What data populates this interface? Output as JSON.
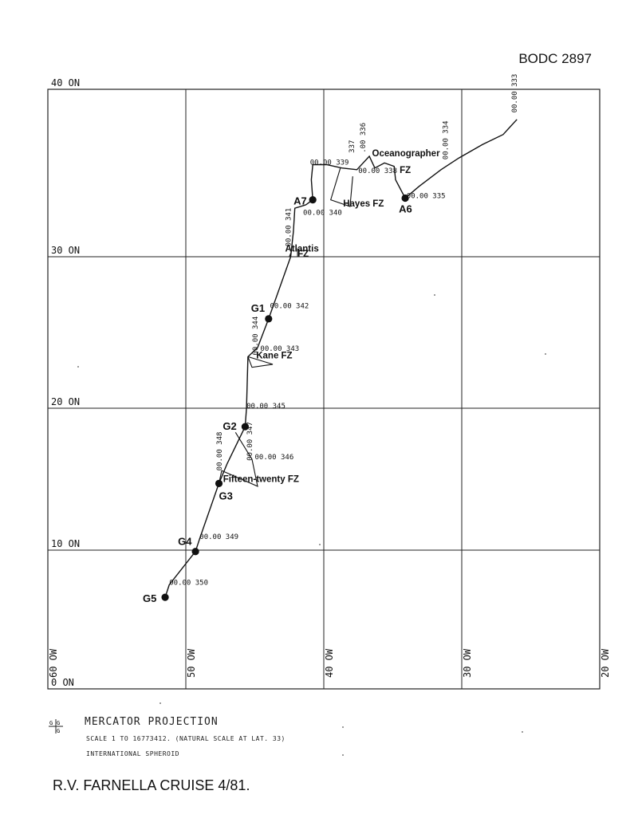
{
  "header": {
    "document_id": "BODC 2897"
  },
  "map": {
    "grid_latitudes": [
      {
        "value": 0,
        "label": "0 ON"
      },
      {
        "value": 10,
        "label": "10 ON"
      },
      {
        "value": 20,
        "label": "20 ON"
      },
      {
        "value": 30,
        "label": "30 ON"
      },
      {
        "value": 40,
        "label": "40 ON"
      }
    ],
    "grid_longitudes": [
      {
        "value": 60,
        "label": "60 OW"
      },
      {
        "value": 50,
        "label": "50 OW"
      },
      {
        "value": 40,
        "label": "40 OW"
      },
      {
        "value": 30,
        "label": "30 OW"
      },
      {
        "value": 20,
        "label": "20 OW"
      }
    ],
    "stations": [
      {
        "name": "G5",
        "lon": 51.5,
        "lat": 6.6
      },
      {
        "name": "G4",
        "lon": 49.3,
        "lat": 9.9
      },
      {
        "name": "G3",
        "lon": 47.6,
        "lat": 14.7
      },
      {
        "name": "G2",
        "lon": 45.7,
        "lat": 18.7
      },
      {
        "name": "G1",
        "lon": 44.0,
        "lat": 25.9
      },
      {
        "name": "A7",
        "lon": 40.8,
        "lat": 33.4
      },
      {
        "name": "A6",
        "lon": 34.1,
        "lat": 33.5
      }
    ],
    "day_marks": [
      {
        "label": "00.00 350",
        "lon": 51.2,
        "lat": 7.5
      },
      {
        "label": "00.00 349",
        "lon": 49.0,
        "lat": 10.8
      },
      {
        "label": "00.00 348",
        "lon": 47.4,
        "lat": 15.6
      },
      {
        "label": "00.00 347",
        "lon": 45.2,
        "lat": 16.3
      },
      {
        "label": "00.00 346",
        "lon": 45.0,
        "lat": 16.4
      },
      {
        "label": "00.00 345",
        "lon": 45.6,
        "lat": 20.0
      },
      {
        "label": "00.00 344",
        "lon": 44.8,
        "lat": 23.5
      },
      {
        "label": "00.00 343",
        "lon": 44.6,
        "lat": 23.8
      },
      {
        "label": "00.00 342",
        "lon": 43.9,
        "lat": 26.6
      },
      {
        "label": "00.00 341",
        "lon": 42.4,
        "lat": 30.6
      },
      {
        "label": "00.00 340",
        "lon": 41.5,
        "lat": 32.5
      },
      {
        "label": "00.00 339",
        "lon": 41.0,
        "lat": 35.5
      },
      {
        "label": "00.00 338",
        "lon": 37.5,
        "lat": 35.0
      },
      {
        "label": "337",
        "lon": 37.8,
        "lat": 36.2
      },
      {
        "label": ".00 336",
        "lon": 37.0,
        "lat": 36.2
      },
      {
        "label": "00.00 335",
        "lon": 34.0,
        "lat": 33.5
      },
      {
        "label": "00.00 334",
        "lon": 31.0,
        "lat": 35.8
      },
      {
        "label": "00.00 333",
        "lon": 26.0,
        "lat": 38.6
      }
    ],
    "features": [
      {
        "label": "Oceanographer",
        "lon": 36.5,
        "lat": 36.0
      },
      {
        "label": "FZ",
        "lon": 34.5,
        "lat": 35.0
      },
      {
        "label": "Hayes FZ",
        "lon": 38.6,
        "lat": 33.0
      },
      {
        "label": "Atlantis",
        "lon": 42.8,
        "lat": 30.3
      },
      {
        "label": "FZ",
        "lon": 41.9,
        "lat": 30.0
      },
      {
        "label": "Kane  FZ",
        "lon": 44.9,
        "lat": 23.3
      },
      {
        "label": "Fifteen-twenty FZ",
        "lon": 47.3,
        "lat": 14.8
      }
    ]
  },
  "legend": {
    "symbol": "G|G",
    "projection": "MERCATOR PROJECTION",
    "scale": "SCALE  1  TO  16773412.  (NATURAL SCALE AT LAT. 33)",
    "spheroid": "INTERNATIONAL SPHEROID"
  },
  "footer": {
    "title": "R.V. FARNELLA CRUISE 4/81."
  },
  "colors": {
    "ink": "#111111",
    "grid": "#222222",
    "background": "#ffffff"
  }
}
